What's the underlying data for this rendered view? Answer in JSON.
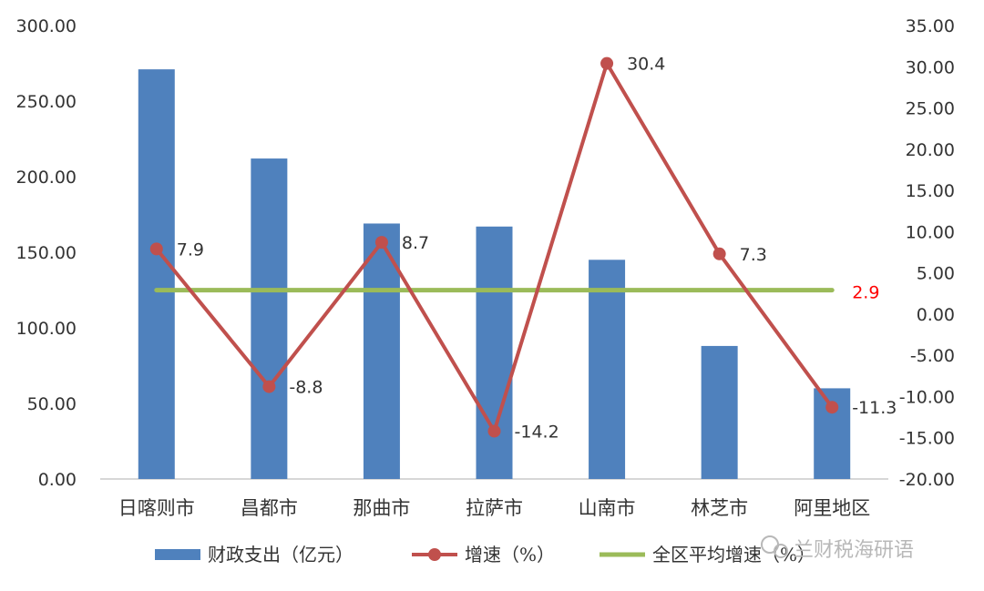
{
  "chart_data": {
    "type": "bar",
    "categories": [
      "日喀则市",
      "昌都市",
      "那曲市",
      "拉萨市",
      "山南市",
      "林芝市",
      "阿里地区"
    ],
    "series": [
      {
        "name": "财政支出（亿元）",
        "type": "bar",
        "axis": "left",
        "values": [
          271,
          212,
          169,
          167,
          145,
          88,
          60
        ],
        "color": "#4f81bd"
      },
      {
        "name": "增速（%）",
        "type": "line",
        "axis": "right",
        "values": [
          7.9,
          -8.8,
          8.7,
          -14.2,
          30.4,
          7.3,
          -11.3
        ],
        "color": "#c0504d"
      },
      {
        "name": "全区平均增速（%）",
        "type": "line",
        "axis": "right",
        "values": [
          2.9,
          2.9,
          2.9,
          2.9,
          2.9,
          2.9,
          2.9
        ],
        "color": "#9bbb59"
      }
    ],
    "left_axis": {
      "min": 0,
      "max": 300,
      "step": 50,
      "ticks": [
        "0.00",
        "50.00",
        "100.00",
        "150.00",
        "200.00",
        "250.00",
        "300.00"
      ]
    },
    "right_axis": {
      "min": -20,
      "max": 35,
      "step": 5,
      "ticks": [
        "-20.00",
        "-15.00",
        "-10.00",
        "-5.00",
        "0.00",
        "5.00",
        "10.00",
        "15.00",
        "20.00",
        "25.00",
        "30.00",
        "35.00"
      ]
    },
    "growth_labels": [
      "7.9",
      "-8.8",
      "8.7",
      "-14.2",
      "30.4",
      "7.3",
      "-11.3"
    ],
    "average_label": "2.9",
    "average_label_color": "#ff0000",
    "legend_position": "bottom",
    "grid": false
  },
  "watermark": {
    "text": "兰财税海研语"
  }
}
